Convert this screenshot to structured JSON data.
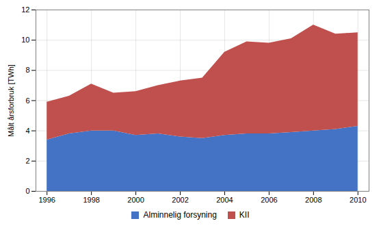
{
  "chart_data": {
    "type": "area",
    "stacked": true,
    "x": [
      1996,
      1997,
      1998,
      1999,
      2000,
      2001,
      2002,
      2003,
      2004,
      2005,
      2006,
      2007,
      2008,
      2009,
      2010
    ],
    "series": [
      {
        "name": "Alminnelig forsyning",
        "color": "#4472C4",
        "values": [
          3.4,
          3.8,
          4.0,
          4.0,
          3.7,
          3.8,
          3.6,
          3.5,
          3.7,
          3.8,
          3.8,
          3.9,
          4.0,
          4.1,
          4.3
        ]
      },
      {
        "name": "KII",
        "color": "#C0504D",
        "values": [
          2.5,
          2.5,
          3.1,
          2.5,
          2.9,
          3.2,
          3.7,
          4.0,
          5.5,
          6.1,
          6.0,
          6.2,
          7.0,
          6.3,
          6.2
        ]
      }
    ],
    "ylabel": "Målt årsforbruk [TWh]",
    "xlim": [
      1995.5,
      2010.5
    ],
    "xticks": [
      1996,
      1998,
      2000,
      2002,
      2004,
      2006,
      2008,
      2010
    ],
    "ylim": [
      0,
      12
    ],
    "yticks": [
      0,
      2,
      4,
      6,
      8,
      10,
      12
    ],
    "grid": true,
    "legend": "bottom"
  }
}
